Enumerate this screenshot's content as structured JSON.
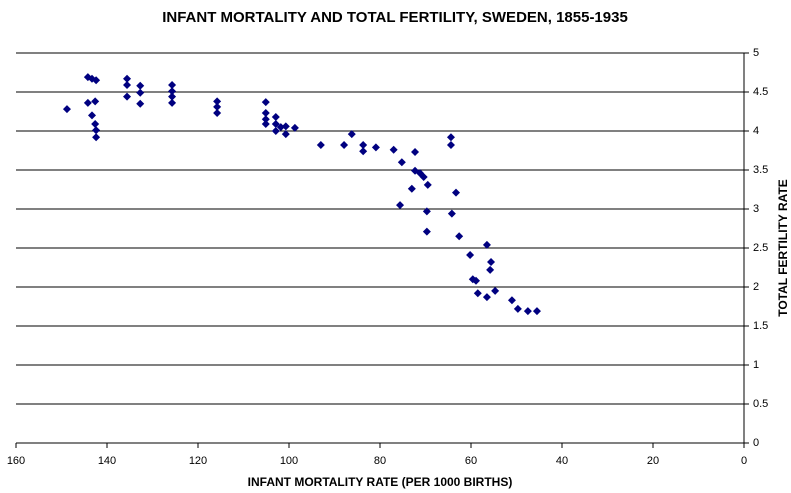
{
  "chart_data": {
    "type": "scatter",
    "title": "INFANT MORTALITY AND TOTAL FERTILITY, SWEDEN, 1855-1935",
    "x_label": "INFANT MORTALITY RATE (PER 1000 BIRTHS)",
    "y_label": "TOTAL FERTILITY RATE",
    "xlim": [
      160,
      0
    ],
    "xticks": [
      160,
      140,
      120,
      100,
      80,
      60,
      40,
      20,
      0
    ],
    "ylim": [
      0,
      5
    ],
    "yticks": [
      0,
      0.5,
      1,
      1.5,
      2,
      2.5,
      3,
      3.5,
      4,
      4.5,
      5
    ],
    "grid": true,
    "color": "#000080",
    "series": [
      {
        "name": "Sweden",
        "color": "#000080",
        "x": [
          148.8,
          144.2,
          143.3,
          142.4,
          144.2,
          142.6,
          143.3,
          142.6,
          142.4,
          142.4,
          135.6,
          135.6,
          135.6,
          132.7,
          132.7,
          132.7,
          125.7,
          125.7,
          125.7,
          125.7,
          115.8,
          115.8,
          115.8,
          105.1,
          105.1,
          105.1,
          105.1,
          102.9,
          102.9,
          102.9,
          101.8,
          100.7,
          100.7,
          98.7,
          93.0,
          87.9,
          86.2,
          83.7,
          83.7,
          80.9,
          77.0,
          75.2,
          72.3,
          72.3,
          71.2,
          70.4,
          73.0,
          69.5,
          75.6,
          69.7,
          69.7,
          64.4,
          64.4,
          63.3,
          64.2,
          62.6,
          60.2,
          59.6,
          58.9,
          58.5,
          56.5,
          55.6,
          55.8,
          54.7,
          56.5,
          51.0,
          49.7,
          47.5,
          45.5
        ],
        "values": [
          4.28,
          4.69,
          4.67,
          4.65,
          4.36,
          4.38,
          4.2,
          4.09,
          4.01,
          3.92,
          4.67,
          4.59,
          4.44,
          4.58,
          4.49,
          4.35,
          4.59,
          4.51,
          4.44,
          4.36,
          4.38,
          4.31,
          4.23,
          4.37,
          4.23,
          4.15,
          4.09,
          4.18,
          4.09,
          4.0,
          4.05,
          4.06,
          3.96,
          4.04,
          3.82,
          3.82,
          3.96,
          3.82,
          3.74,
          3.79,
          3.76,
          3.6,
          3.73,
          3.49,
          3.46,
          3.41,
          3.26,
          3.31,
          3.05,
          2.97,
          2.71,
          3.82,
          3.92,
          3.21,
          2.94,
          2.65,
          2.41,
          2.1,
          2.08,
          1.92,
          2.54,
          2.32,
          2.22,
          1.95,
          1.87,
          1.83,
          1.72,
          1.69,
          1.69
        ]
      }
    ]
  }
}
